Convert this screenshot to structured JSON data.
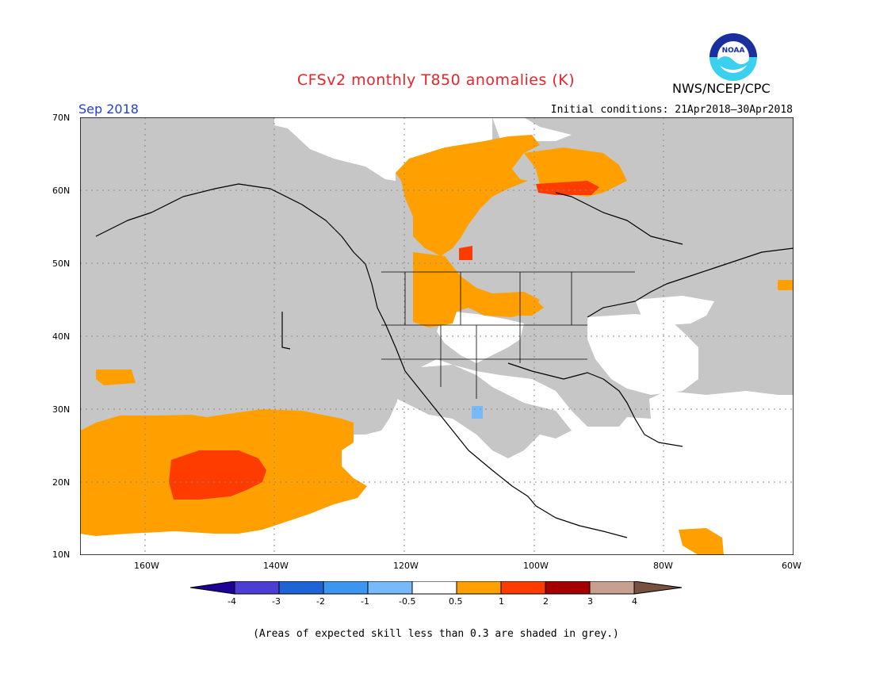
{
  "map": {
    "title": "CFSv2 monthly T850 anomalies (K)",
    "agency": "NWS/NCEP/CPC",
    "logo_text": "NOAA",
    "valid_period": "Sep 2018",
    "initial_conditions": "Initial conditions: 21Apr2018–30Apr2018",
    "lat_labels": [
      "70N",
      "60N",
      "50N",
      "40N",
      "30N",
      "20N",
      "10N"
    ],
    "lon_labels": [
      "160W",
      "140W",
      "120W",
      "100W",
      "80W",
      "60W"
    ],
    "footnote": "(Areas of expected skill less than 0.3 are shaded in grey.)"
  },
  "legend": {
    "tick_labels": [
      "-4",
      "-3",
      "-2",
      "-1",
      "-0.5",
      "0.5",
      "1",
      "2",
      "3",
      "4"
    ],
    "colors": [
      "#1e0096",
      "#4d3ed3",
      "#1f64d6",
      "#3c96f0",
      "#78b9fa",
      "#ffffff",
      "#ffa000",
      "#ff3c00",
      "#a50000",
      "#c8a090",
      "#785040"
    ]
  },
  "colors": {
    "grey": "#c6c6c6",
    "title": "#e8242b",
    "period": "#2040d0"
  }
}
